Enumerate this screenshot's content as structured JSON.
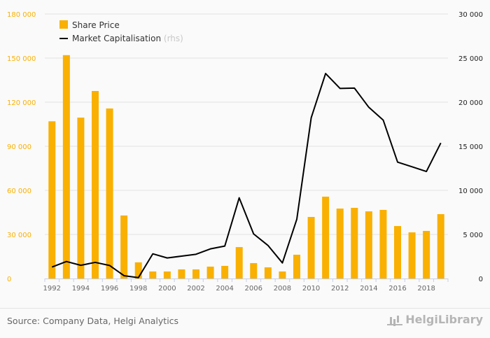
{
  "chart_data": {
    "type": "bar+line",
    "categories": [
      "1992",
      "1993",
      "1994",
      "1995",
      "1996",
      "1997",
      "1998",
      "1999",
      "2000",
      "2001",
      "2002",
      "2003",
      "2004",
      "2005",
      "2006",
      "2007",
      "2008",
      "2009",
      "2010",
      "2011",
      "2012",
      "2013",
      "2014",
      "2015",
      "2016",
      "2017",
      "2018",
      "2019"
    ],
    "x_tick_labels": [
      "1992",
      "1994",
      "1996",
      "1998",
      "2000",
      "2002",
      "2004",
      "2006",
      "2008",
      "2010",
      "2012",
      "2014",
      "2016",
      "2018"
    ],
    "series": [
      {
        "name": "Share Price",
        "type": "bar",
        "axis": "left",
        "color": "#f9b000",
        "values": [
          107000,
          152000,
          109500,
          127600,
          115700,
          42900,
          11000,
          4800,
          4800,
          6200,
          6200,
          8100,
          8600,
          21400,
          10500,
          7600,
          4800,
          16200,
          41900,
          55700,
          47600,
          48100,
          45700,
          46700,
          35700,
          31400,
          32400,
          43800
        ]
      },
      {
        "name": "Market Capitalisation",
        "name_suffix": "(rhs)",
        "type": "line",
        "axis": "right",
        "color": "#000000",
        "values": [
          1300,
          1930,
          1500,
          1830,
          1480,
          320,
          100,
          2800,
          2330,
          2540,
          2750,
          3360,
          3680,
          9150,
          5060,
          3750,
          1770,
          6720,
          18230,
          23250,
          21560,
          21600,
          19420,
          17970,
          13200,
          12670,
          12140,
          15370
        ]
      }
    ],
    "left_axis": {
      "ylim": [
        0,
        180000
      ],
      "ticks": [
        0,
        30000,
        60000,
        90000,
        120000,
        150000,
        180000
      ],
      "tick_labels": [
        "0",
        "30 000",
        "60 000",
        "90 000",
        "120 000",
        "150 000",
        "180 000"
      ],
      "color": "#f9b000"
    },
    "right_axis": {
      "ylim": [
        0,
        30000
      ],
      "ticks": [
        0,
        5000,
        10000,
        15000,
        20000,
        25000,
        30000
      ],
      "tick_labels": [
        "0",
        "5 000",
        "10 000",
        "15 000",
        "20 000",
        "25 000",
        "30 000"
      ],
      "color": "#222222"
    },
    "grid": true,
    "legend_position": "top-left"
  },
  "footer": {
    "source": "Source: Company Data, Helgi Analytics",
    "logo": "HelgiLibrary"
  }
}
